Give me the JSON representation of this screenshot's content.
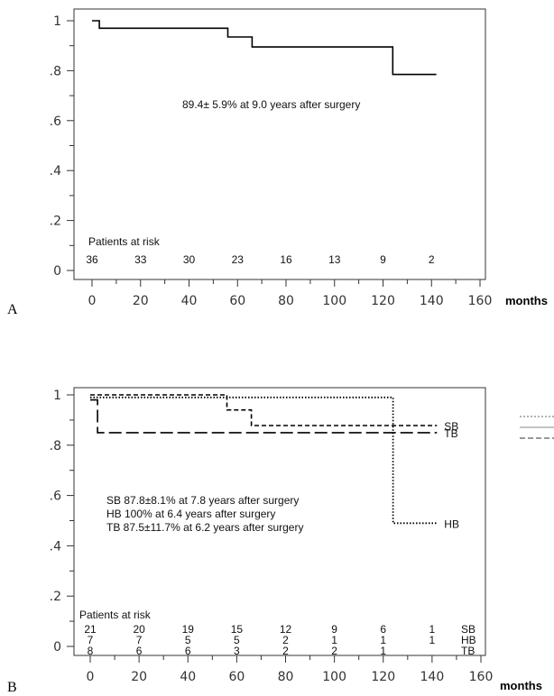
{
  "chart_data": [
    {
      "type": "line",
      "panel_label": "A",
      "x_unit": "months",
      "xlim": [
        0,
        160
      ],
      "ylim": [
        0,
        1
      ],
      "xticks": [
        "0",
        "20",
        "40",
        "60",
        "80",
        "100",
        "120",
        "140",
        "160"
      ],
      "yticks": [
        "0",
        ".2",
        ".4",
        ".6",
        ".8",
        "1"
      ],
      "series": [
        {
          "style": "solid",
          "points": [
            [
              0,
              1
            ],
            [
              3,
              1
            ],
            [
              3,
              0.97
            ],
            [
              56,
              0.97
            ],
            [
              56,
              0.935
            ],
            [
              66,
              0.935
            ],
            [
              66,
              0.895
            ],
            [
              124,
              0.895
            ],
            [
              124,
              0.785
            ],
            [
              142,
              0.785
            ]
          ]
        }
      ],
      "annotation": "89.4± 5.9% at 9.0 years after surgery",
      "risk_table": {
        "title": "Patients at risk",
        "rows": [
          {
            "name": "",
            "values": [
              "36",
              "33",
              "30",
              "23",
              "16",
              "13",
              "9",
              "2"
            ]
          }
        ]
      }
    },
    {
      "type": "line",
      "panel_label": "B",
      "x_unit": "months",
      "xlim": [
        0,
        160
      ],
      "ylim": [
        0,
        1
      ],
      "xticks": [
        "0",
        "20",
        "40",
        "60",
        "80",
        "100",
        "120",
        "140",
        "160"
      ],
      "yticks": [
        "0",
        ".2",
        ".4",
        ".6",
        ".8",
        "1"
      ],
      "series": [
        {
          "name": "SB",
          "style": "short-dash",
          "points": [
            [
              0,
              1
            ],
            [
              56,
              1
            ],
            [
              56,
              0.94
            ],
            [
              66,
              0.94
            ],
            [
              66,
              0.878
            ],
            [
              142,
              0.878
            ]
          ]
        },
        {
          "name": "HB",
          "style": "dotted",
          "points": [
            [
              0,
              0.99
            ],
            [
              124,
              0.99
            ],
            [
              124,
              0.49
            ],
            [
              142,
              0.49
            ]
          ]
        },
        {
          "name": "TB",
          "style": "long-dash",
          "points": [
            [
              0,
              0.98
            ],
            [
              3,
              0.98
            ],
            [
              3,
              0.85
            ],
            [
              142,
              0.85
            ]
          ]
        }
      ],
      "annotations": [
        "SB 87.8±8.1% at 7.8 years after surgery",
        "HB 100% at 6.4 years after surgery",
        "TB 87.5±11.7% at 6.2 years after surgery"
      ],
      "risk_table": {
        "title": "Patients at risk",
        "rows": [
          {
            "name": "SB",
            "values": [
              "21",
              "20",
              "19",
              "15",
              "12",
              "9",
              "6",
              "1"
            ]
          },
          {
            "name": "HB",
            "values": [
              "7",
              "7",
              "5",
              "5",
              "2",
              "1",
              "1",
              "1"
            ]
          },
          {
            "name": "TB",
            "values": [
              "8",
              "6",
              "6",
              "3",
              "2",
              "2",
              "1",
              ""
            ]
          }
        ]
      }
    }
  ]
}
